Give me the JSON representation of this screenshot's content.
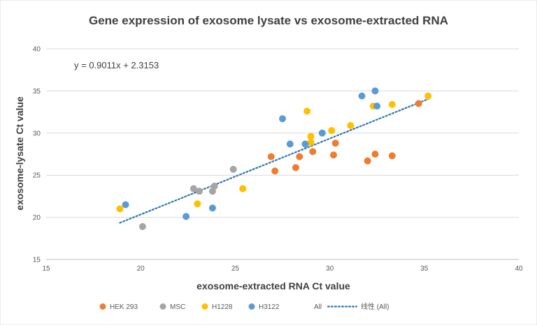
{
  "chart_data": {
    "type": "scatter",
    "title": "Gene expression of exosome lysate vs exosome-extracted RNA",
    "xlabel": "exosome-extracted RNA Ct value",
    "ylabel": "exosome-lysate Ct value",
    "xlim": [
      15,
      40
    ],
    "ylim": [
      15,
      40
    ],
    "xticks": [
      "15",
      "20",
      "25",
      "30",
      "35",
      "40"
    ],
    "yticks": [
      "15",
      "20",
      "25",
      "30",
      "35",
      "40"
    ],
    "grid": "horizontal",
    "legend_position": "bottom",
    "series": [
      {
        "name": "HEK 293",
        "color": "#ED7D31",
        "points": [
          [
            26.9,
            27.2
          ],
          [
            27.1,
            25.5
          ],
          [
            28.2,
            25.9
          ],
          [
            28.4,
            27.2
          ],
          [
            29.1,
            27.8
          ],
          [
            30.2,
            27.4
          ],
          [
            30.3,
            28.8
          ],
          [
            32.0,
            26.7
          ],
          [
            32.4,
            27.5
          ],
          [
            33.3,
            27.3
          ],
          [
            34.7,
            33.5
          ]
        ]
      },
      {
        "name": "MSC",
        "color": "#A5A5A5",
        "points": [
          [
            20.1,
            18.9
          ],
          [
            22.8,
            23.4
          ],
          [
            23.1,
            23.1
          ],
          [
            23.8,
            23.1
          ],
          [
            23.9,
            23.7
          ],
          [
            24.9,
            25.7
          ]
        ]
      },
      {
        "name": "H1228",
        "color": "#FFC000",
        "points": [
          [
            18.9,
            21.0
          ],
          [
            23.0,
            21.6
          ],
          [
            25.4,
            23.4
          ],
          [
            28.8,
            32.6
          ],
          [
            29.0,
            28.9
          ],
          [
            29.0,
            29.6
          ],
          [
            30.1,
            30.3
          ],
          [
            31.1,
            30.9
          ],
          [
            32.3,
            33.2
          ],
          [
            33.3,
            33.4
          ],
          [
            35.2,
            34.4
          ]
        ]
      },
      {
        "name": "H3122",
        "color": "#5B9BD5",
        "points": [
          [
            19.2,
            21.5
          ],
          [
            22.4,
            20.1
          ],
          [
            23.8,
            21.1
          ],
          [
            27.5,
            31.7
          ],
          [
            27.9,
            28.7
          ],
          [
            28.7,
            28.7
          ],
          [
            29.6,
            30.0
          ],
          [
            31.7,
            34.4
          ],
          [
            32.4,
            35.0
          ],
          [
            32.5,
            33.2
          ]
        ]
      }
    ],
    "trendline": {
      "name": "线性 (All)",
      "color": "#2E75B6",
      "style": "dotted",
      "slope": 0.9011,
      "intercept": 2.3153,
      "x_range": [
        18.9,
        35.2
      ],
      "equation": "y = 0.9011x + 2.3153"
    },
    "legend": [
      "HEK 293",
      "MSC",
      "H1228",
      "H3122",
      "All",
      "线性 (All)"
    ]
  }
}
